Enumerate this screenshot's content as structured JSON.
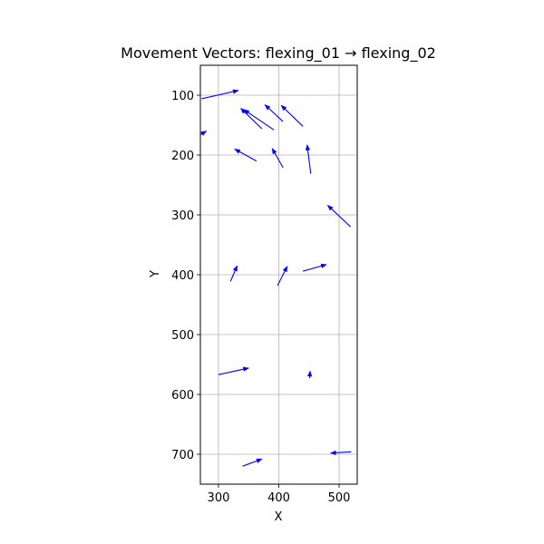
{
  "chart_data": {
    "type": "quiver",
    "title": "Movement Vectors: flexing_01 → flexing_02",
    "xlabel": "X",
    "ylabel": "Y",
    "xlim": [
      270,
      530
    ],
    "ylim": [
      750,
      50
    ],
    "y_inverted": true,
    "grid": true,
    "x_ticks": [
      300,
      400,
      500
    ],
    "y_ticks": [
      100,
      200,
      300,
      400,
      500,
      600,
      700
    ],
    "color": "#0000ff",
    "vectors": [
      {
        "x0": 272,
        "y0": 106,
        "x1": 333,
        "y1": 92
      },
      {
        "x0": 372,
        "y0": 156,
        "x1": 337,
        "y1": 122
      },
      {
        "x0": 392,
        "y0": 158,
        "x1": 342,
        "y1": 124
      },
      {
        "x0": 407,
        "y0": 144,
        "x1": 377,
        "y1": 116
      },
      {
        "x0": 440,
        "y0": 152,
        "x1": 404,
        "y1": 117
      },
      {
        "x0": 270,
        "y0": 166,
        "x1": 280,
        "y1": 160
      },
      {
        "x0": 363,
        "y0": 210,
        "x1": 327,
        "y1": 190
      },
      {
        "x0": 407,
        "y0": 221,
        "x1": 389,
        "y1": 189
      },
      {
        "x0": 453,
        "y0": 231,
        "x1": 447,
        "y1": 183
      },
      {
        "x0": 519,
        "y0": 320,
        "x1": 481,
        "y1": 284
      },
      {
        "x0": 320,
        "y0": 411,
        "x1": 331,
        "y1": 385
      },
      {
        "x0": 398,
        "y0": 418,
        "x1": 414,
        "y1": 386
      },
      {
        "x0": 440,
        "y0": 394,
        "x1": 479,
        "y1": 383
      },
      {
        "x0": 300,
        "y0": 567,
        "x1": 350,
        "y1": 556
      },
      {
        "x0": 451,
        "y0": 573,
        "x1": 452,
        "y1": 561
      },
      {
        "x0": 520,
        "y0": 696,
        "x1": 486,
        "y1": 698
      },
      {
        "x0": 340,
        "y0": 720,
        "x1": 372,
        "y1": 708
      }
    ]
  }
}
